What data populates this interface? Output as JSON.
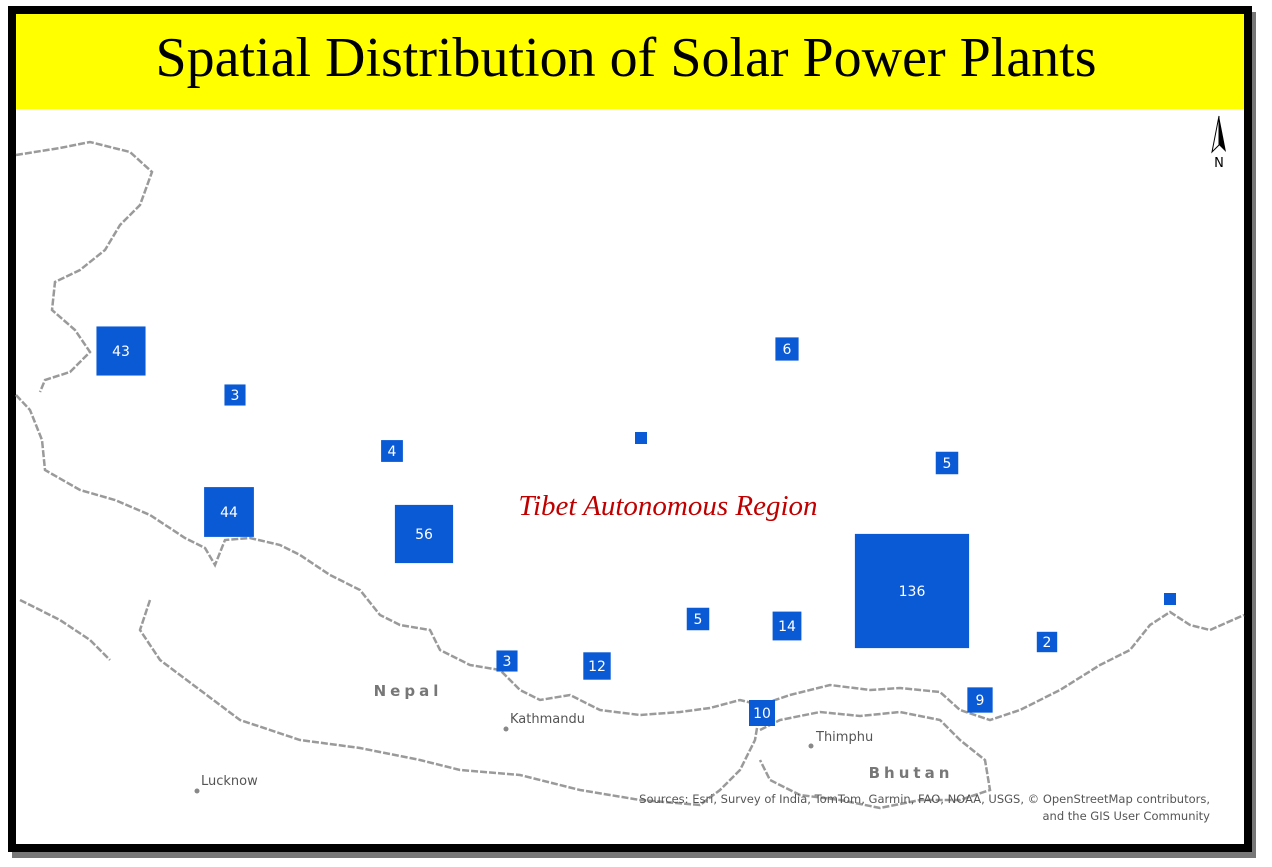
{
  "title": "Spatial Distribution of Solar Power Plants",
  "north_label": "N",
  "region_label": "Tibet Autonomous Region",
  "places": [
    {
      "label": "Nepal"
    },
    {
      "label": "Kathmandu"
    },
    {
      "label": "Bhutan"
    },
    {
      "label": "Thimphu"
    },
    {
      "label": "Lucknow"
    }
  ],
  "attribution": [
    "Sources: Esri, Survey of India, TomTom, Garmin, FAO, NOAA, USGS, © OpenStreetMap contributors,",
    "and the GIS User Community"
  ],
  "marker_color": "#0a5ad6",
  "markers": [
    {
      "value": 43
    },
    {
      "value": 3
    },
    {
      "value": 4
    },
    {
      "value": 44
    },
    {
      "value": 56
    },
    {
      "value": null
    },
    {
      "value": 6
    },
    {
      "value": 5
    },
    {
      "value": 136
    },
    {
      "value": 5
    },
    {
      "value": 14
    },
    {
      "value": 3
    },
    {
      "value": 12
    },
    {
      "value": 10
    },
    {
      "value": 9
    },
    {
      "value": 2
    },
    {
      "value": null
    }
  ]
}
